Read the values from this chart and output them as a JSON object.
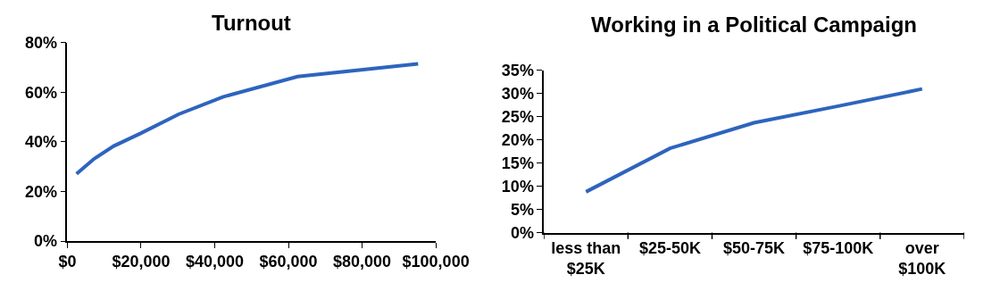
{
  "chart_data": [
    {
      "type": "line",
      "title": "Turnout",
      "x": [
        2500,
        7300,
        12600,
        19900,
        30200,
        42200,
        62500,
        95200
      ],
      "series": [
        {
          "color": "#2e64be",
          "values": [
            27.1,
            33.2,
            38.3,
            43.4,
            51.1,
            58.1,
            66.3,
            71.4
          ]
        }
      ],
      "xlim": [
        0,
        100000
      ],
      "xticks": [
        {
          "value": 0,
          "label": "$0"
        },
        {
          "value": 20000,
          "label": "$20,000"
        },
        {
          "value": 40000,
          "label": "$40,000"
        },
        {
          "value": 60000,
          "label": "$60,000"
        },
        {
          "value": 80000,
          "label": "$80,000"
        },
        {
          "value": 100000,
          "label": "$100,000"
        }
      ],
      "ylim": [
        0,
        80
      ],
      "yticks": [
        {
          "value": 0,
          "label": "0%"
        },
        {
          "value": 20,
          "label": "20%"
        },
        {
          "value": 40,
          "label": "40%"
        },
        {
          "value": 60,
          "label": "60%"
        },
        {
          "value": 80,
          "label": "80%"
        }
      ],
      "marker": "none",
      "line_style": "solid"
    },
    {
      "type": "line",
      "title": "Working in a Political Campaign",
      "categories": [
        "less than $25K",
        "$25-50K",
        "$50-75K",
        "$75-100K",
        "over $100K"
      ],
      "series": [
        {
          "color": "#2e64be",
          "values": [
            8.8,
            18.2,
            23.7,
            27.3,
            31.0
          ]
        }
      ],
      "ylim": [
        0,
        35
      ],
      "yticks": [
        {
          "value": 0,
          "label": "0%"
        },
        {
          "value": 5,
          "label": "5%"
        },
        {
          "value": 10,
          "label": "10%"
        },
        {
          "value": 15,
          "label": "15%"
        },
        {
          "value": 20,
          "label": "20%"
        },
        {
          "value": 25,
          "label": "25%"
        },
        {
          "value": 30,
          "label": "30%"
        },
        {
          "value": 35,
          "label": "35%"
        }
      ],
      "marker": "none",
      "line_style": "solid"
    }
  ]
}
